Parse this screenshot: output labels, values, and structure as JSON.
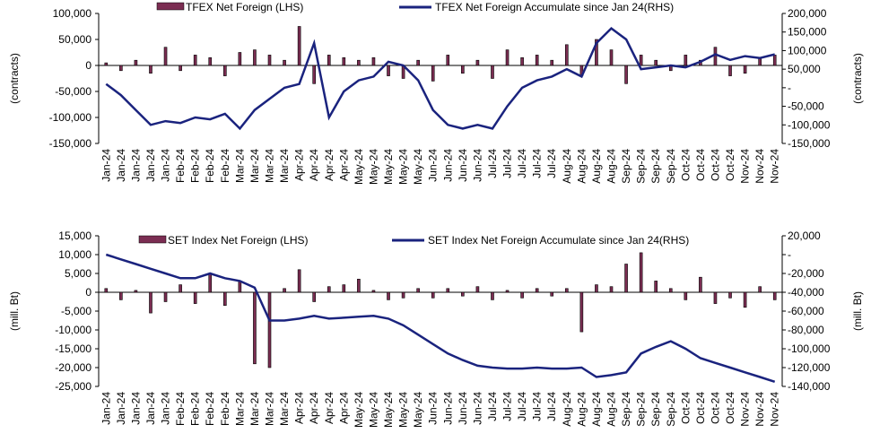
{
  "chart_data": [
    {
      "type": "bar_line",
      "categories": [
        "Jan-24",
        "Jan-24",
        "Jan-24",
        "Jan-24",
        "Jan-24",
        "Feb-24",
        "Feb-24",
        "Feb-24",
        "Feb-24",
        "Mar-24",
        "Mar-24",
        "Mar-24",
        "Mar-24",
        "Apr-24",
        "Apr-24",
        "Apr-24",
        "Apr-24",
        "May-24",
        "May-24",
        "May-24",
        "May-24",
        "May-24",
        "Jun-24",
        "Jun-24",
        "Jun-24",
        "Jun-24",
        "Jul-24",
        "Jul-24",
        "Jul-24",
        "Jul-24",
        "Jul-24",
        "Aug-24",
        "Aug-24",
        "Aug-24",
        "Aug-24",
        "Sep-24",
        "Sep-24",
        "Sep-24",
        "Sep-24",
        "Oct-24",
        "Oct-24",
        "Oct-24",
        "Oct-24",
        "Nov-24",
        "Nov-24",
        "Nov-24"
      ],
      "series": [
        {
          "name": "TFEX Net Foreign (LHS)",
          "color": "#7b2d52",
          "values": [
            5000,
            -10000,
            10000,
            -15000,
            35000,
            -10000,
            20000,
            15000,
            -20000,
            25000,
            30000,
            20000,
            10000,
            75000,
            -35000,
            20000,
            15000,
            10000,
            15000,
            -20000,
            -25000,
            10000,
            -30000,
            20000,
            -15000,
            10000,
            -25000,
            30000,
            15000,
            20000,
            10000,
            40000,
            -20000,
            50000,
            30000,
            -35000,
            20000,
            10000,
            -10000,
            20000,
            10000,
            35000,
            -20000,
            -15000,
            15000,
            20000
          ]
        },
        {
          "name": "TFEX Net Foreign Accumulate since Jan 24(RHS)",
          "color": "#1a237e",
          "axis": "y2",
          "values": [
            10000,
            -20000,
            -60000,
            -100000,
            -90000,
            -95000,
            -80000,
            -85000,
            -70000,
            -110000,
            -60000,
            -30000,
            0,
            10000,
            120000,
            -80000,
            -10000,
            20000,
            30000,
            70000,
            60000,
            20000,
            -60000,
            -100000,
            -110000,
            -100000,
            -110000,
            -50000,
            0,
            20000,
            30000,
            50000,
            30000,
            120000,
            160000,
            130000,
            50000,
            55000,
            60000,
            55000,
            70000,
            90000,
            75000,
            85000,
            80000,
            90000
          ]
        }
      ],
      "ylabel": "(contracts)",
      "y2label": "(contracts)",
      "ylim": [
        -150000,
        100000
      ],
      "yticks": [
        {
          "value": -150000,
          "label": "-150,000"
        },
        {
          "value": -100000,
          "label": "-100,000"
        },
        {
          "value": -50000,
          "label": "-50,000"
        },
        0,
        {
          "value": 50000,
          "label": "50,000"
        },
        {
          "value": 100000,
          "label": "100,000"
        }
      ],
      "y2lim": [
        -150000,
        200000
      ],
      "y2ticks": [
        {
          "value": -150000,
          "label": "-150,000"
        },
        {
          "value": -100000,
          "label": "-100,000"
        },
        {
          "value": -50000,
          "label": "-50,000"
        },
        {
          "value": 0,
          "label": "-"
        },
        {
          "value": 50000,
          "label": "50,000"
        },
        {
          "value": 100000,
          "label": "100,000"
        },
        {
          "value": 150000,
          "label": "150,000"
        },
        {
          "value": 200000,
          "label": "200,000"
        }
      ]
    },
    {
      "type": "bar_line",
      "categories": [
        "Jan-24",
        "Jan-24",
        "Jan-24",
        "Jan-24",
        "Jan-24",
        "Feb-24",
        "Feb-24",
        "Feb-24",
        "Feb-24",
        "Mar-24",
        "Mar-24",
        "Mar-24",
        "Mar-24",
        "Apr-24",
        "Apr-24",
        "Apr-24",
        "Apr-24",
        "May-24",
        "May-24",
        "May-24",
        "May-24",
        "May-24",
        "Jun-24",
        "Jun-24",
        "Jun-24",
        "Jun-24",
        "Jul-24",
        "Jul-24",
        "Jul-24",
        "Jul-24",
        "Jul-24",
        "Aug-24",
        "Aug-24",
        "Aug-24",
        "Aug-24",
        "Sep-24",
        "Sep-24",
        "Sep-24",
        "Sep-24",
        "Oct-24",
        "Oct-24",
        "Oct-24",
        "Oct-24",
        "Nov-24",
        "Nov-24",
        "Nov-24"
      ],
      "series": [
        {
          "name": "SET Index Net Foreign (LHS)",
          "color": "#7b2d52",
          "values": [
            1000,
            -2000,
            500,
            -5500,
            -2500,
            2000,
            -3000,
            5000,
            -3500,
            3000,
            -19000,
            -20000,
            1000,
            6000,
            -2500,
            1500,
            2000,
            3500,
            500,
            -2000,
            -1500,
            1000,
            -1500,
            1000,
            -1000,
            1500,
            -2000,
            500,
            -1500,
            1000,
            -1000,
            1000,
            -10500,
            2000,
            1500,
            7500,
            10500,
            3000,
            1000,
            -2000,
            4000,
            -3000,
            -1500,
            -4000,
            1500,
            -2000
          ]
        },
        {
          "name": "SET Index Net Foreign Accumulate since Jan 24(RHS)",
          "color": "#1a237e",
          "axis": "y2",
          "values": [
            0,
            -5000,
            -10000,
            -15000,
            -20000,
            -25000,
            -25000,
            -20000,
            -25000,
            -28000,
            -35000,
            -70000,
            -70000,
            -68000,
            -65000,
            -68000,
            -67000,
            -66000,
            -65000,
            -68000,
            -75000,
            -85000,
            -95000,
            -105000,
            -112000,
            -118000,
            -120000,
            -121000,
            -121000,
            -120000,
            -121000,
            -121000,
            -120000,
            -130000,
            -128000,
            -125000,
            -105000,
            -98000,
            -92000,
            -100000,
            -110000,
            -115000,
            -120000,
            -125000,
            -130000,
            -135000
          ]
        }
      ],
      "ylabel": "(mill. Bt)",
      "y2label": "(mill. Bt)",
      "ylim": [
        -25000,
        15000
      ],
      "yticks": [
        {
          "value": -25000,
          "label": "-25,000"
        },
        {
          "value": -20000,
          "label": "-20,000"
        },
        {
          "value": -15000,
          "label": "-15,000"
        },
        {
          "value": -10000,
          "label": "-10,000"
        },
        {
          "value": -5000,
          "label": "-5,000"
        },
        0,
        {
          "value": 5000,
          "label": "5,000"
        },
        {
          "value": 10000,
          "label": "10,000"
        },
        {
          "value": 15000,
          "label": "15,000"
        }
      ],
      "y2lim": [
        -140000,
        20000
      ],
      "y2ticks": [
        {
          "value": -140000,
          "label": "-140,000"
        },
        {
          "value": -120000,
          "label": "-120,000"
        },
        {
          "value": -100000,
          "label": "-100,000"
        },
        {
          "value": -80000,
          "label": "-80,000"
        },
        {
          "value": -60000,
          "label": "-60,000"
        },
        {
          "value": -40000,
          "label": "-40,000"
        },
        {
          "value": -20000,
          "label": "-20,000"
        },
        {
          "value": 0,
          "label": "-"
        },
        {
          "value": 20000,
          "label": "20,000"
        }
      ]
    }
  ]
}
